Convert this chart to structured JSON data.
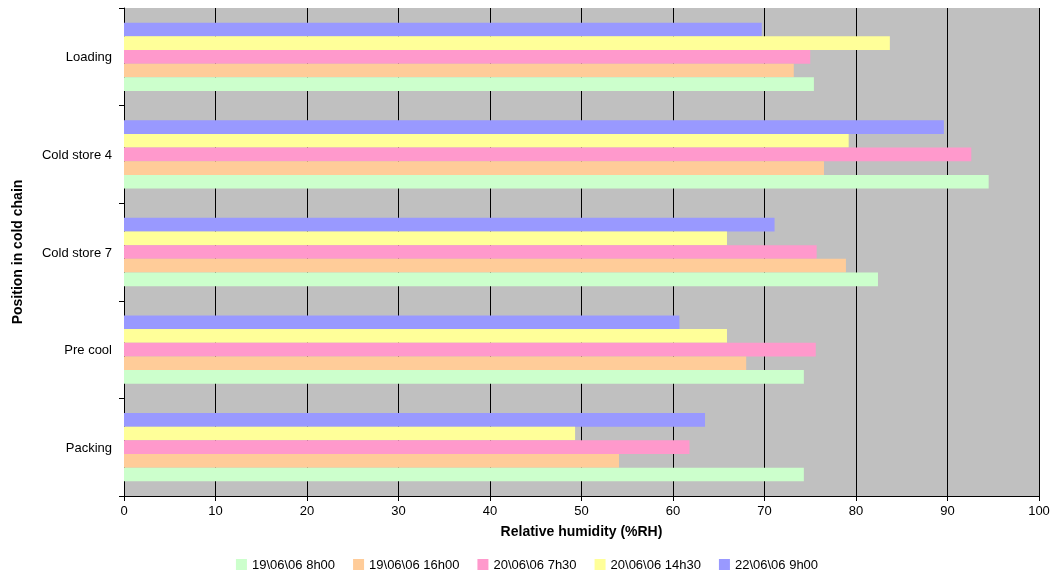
{
  "chart_data": {
    "type": "bar",
    "orientation": "horizontal",
    "xlabel": "Relative humidity (%RH)",
    "ylabel": "Position in cold chain",
    "categories": [
      "Loading",
      "Cold store 4",
      "Cold store 7",
      "Pre cool",
      "Packing"
    ],
    "series": [
      {
        "name": "19\\06\\06 8h00",
        "color": "#ccffcc",
        "values": [
          75.4,
          94.5,
          82.4,
          74.3,
          74.3
        ]
      },
      {
        "name": "19\\06\\06 16h00",
        "color": "#ffcc99",
        "values": [
          73.2,
          76.5,
          78.9,
          68.0,
          54.1
        ]
      },
      {
        "name": "20\\06\\06 7h30",
        "color": "#ff99cc",
        "values": [
          75.0,
          92.6,
          75.7,
          75.6,
          61.8
        ]
      },
      {
        "name": "20\\06\\06 14h30",
        "color": "#ffff99",
        "values": [
          83.7,
          79.2,
          65.9,
          65.9,
          49.3
        ]
      },
      {
        "name": "22\\06\\06 9h00",
        "color": "#9999ff",
        "values": [
          69.7,
          89.6,
          71.1,
          60.7,
          63.5
        ]
      }
    ],
    "xlim": [
      0,
      100
    ],
    "xticks": [
      0,
      10,
      20,
      30,
      40,
      50,
      60,
      70,
      80,
      90,
      100
    ],
    "grid": "x",
    "legend": "bottom"
  }
}
